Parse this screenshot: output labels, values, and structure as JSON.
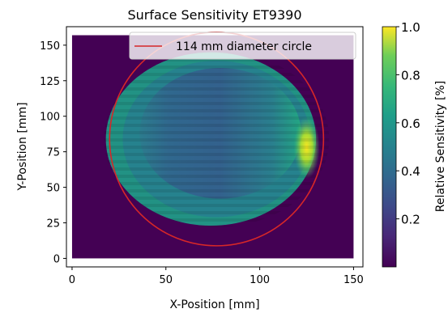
{
  "chart_data": {
    "type": "heatmap",
    "title": "Surface Sensitivity ET9390",
    "xlabel": "X-Position [mm]",
    "ylabel": "Y-Position [mm]",
    "xlim": [
      -3,
      155
    ],
    "ylim": [
      -6,
      163
    ],
    "x_ticks": [
      0,
      50,
      100,
      150
    ],
    "y_ticks": [
      0,
      25,
      50,
      75,
      100,
      125,
      150
    ],
    "scan_extent": {
      "x": [
        0,
        150
      ],
      "y": [
        0,
        157
      ]
    },
    "circle": {
      "label": "114 mm diameter circle",
      "center": [
        77,
        84
      ],
      "diameter": 114,
      "color": "#d62728"
    },
    "legend": {
      "entries": [
        "114 mm diameter circle"
      ],
      "position": "top-right"
    },
    "colorbar": {
      "label": "Relative Sensitivity [%]",
      "min": 0.0,
      "max": 1.0,
      "ticks": [
        0.2,
        0.4,
        0.6,
        0.8,
        1.0
      ],
      "colormap": "viridis"
    },
    "regions": [
      {
        "name": "background",
        "value": 0.03
      },
      {
        "name": "outer-ring",
        "value": 0.58
      },
      {
        "name": "central-region",
        "value": 0.4
      },
      {
        "name": "hotspot-right-edge",
        "value": 0.95
      }
    ]
  }
}
